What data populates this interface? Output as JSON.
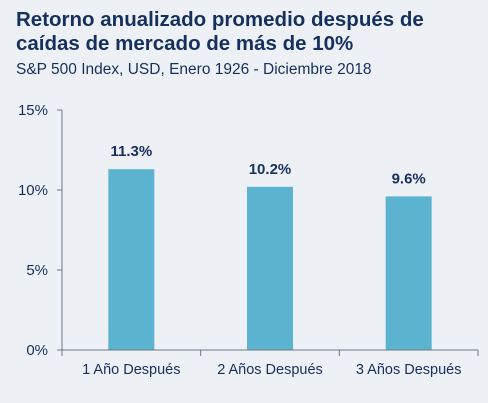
{
  "header": {
    "title": "Retorno anualizado promedio después de caídas de mercado de más de 10%",
    "subtitle": "S&P 500 Index, USD, Enero 1926 - Diciembre 2018"
  },
  "colors": {
    "bar": "#5bb3cf",
    "text": "#16305d",
    "axis": "#6f7886",
    "background": "#edf0f5"
  },
  "chart_data": {
    "type": "bar",
    "title": "Retorno anualizado promedio después de caídas de mercado de más de 10%",
    "subtitle": "S&P 500 Index, USD, Enero 1926 - Diciembre 2018",
    "categories": [
      "1 Año Después",
      "2 Años Después",
      "3 Años Después"
    ],
    "values": [
      11.3,
      10.2,
      9.6
    ],
    "data_labels": [
      "11.3%",
      "10.2%",
      "9.6%"
    ],
    "xlabel": "",
    "ylabel": "",
    "ylim": [
      0,
      15
    ],
    "yticks": [
      0,
      5,
      10,
      15
    ],
    "ytick_labels": [
      "0%",
      "5%",
      "10%",
      "15%"
    ],
    "grid": false,
    "legend": "none"
  }
}
